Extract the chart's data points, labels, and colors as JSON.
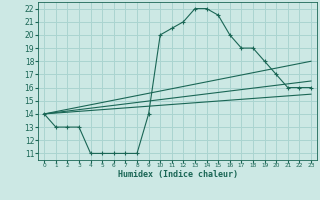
{
  "xlabel": "Humidex (Indice chaleur)",
  "background_color": "#cce8e4",
  "grid_color": "#aad4d0",
  "line_color": "#1a6655",
  "xlim": [
    -0.5,
    23.5
  ],
  "ylim": [
    10.5,
    22.5
  ],
  "xticks": [
    0,
    1,
    2,
    3,
    4,
    5,
    6,
    7,
    8,
    9,
    10,
    11,
    12,
    13,
    14,
    15,
    16,
    17,
    18,
    19,
    20,
    21,
    22,
    23
  ],
  "yticks": [
    11,
    12,
    13,
    14,
    15,
    16,
    17,
    18,
    19,
    20,
    21,
    22
  ],
  "lines": [
    {
      "x": [
        0,
        1,
        2,
        3,
        4,
        5,
        6,
        7,
        8,
        9,
        10,
        11,
        12,
        13,
        14,
        15,
        16,
        17,
        18,
        19,
        20,
        21,
        22,
        23
      ],
      "y": [
        14,
        13,
        13,
        13,
        11,
        11,
        11,
        11,
        11,
        14,
        20,
        20.5,
        21,
        22,
        22,
        21.5,
        20,
        19,
        19,
        18,
        17,
        16,
        16,
        16
      ],
      "marker": true
    },
    {
      "x": [
        0,
        23
      ],
      "y": [
        14,
        18.0
      ],
      "marker": false
    },
    {
      "x": [
        0,
        23
      ],
      "y": [
        14,
        16.5
      ],
      "marker": false
    },
    {
      "x": [
        0,
        23
      ],
      "y": [
        14,
        15.5
      ],
      "marker": false
    }
  ]
}
